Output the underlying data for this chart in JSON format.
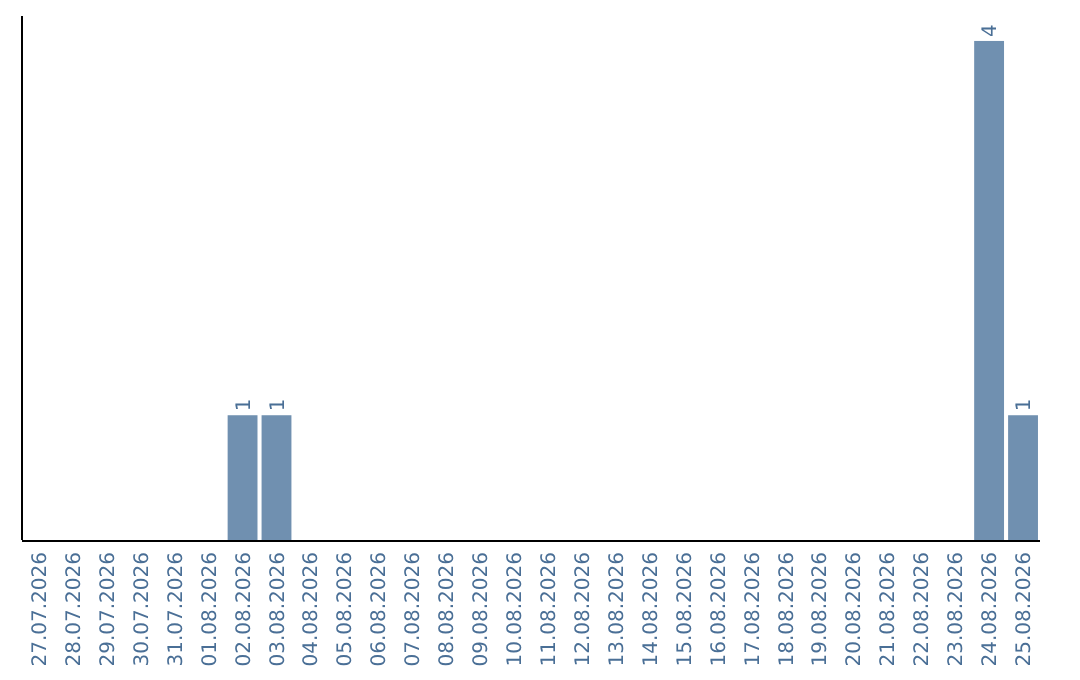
{
  "chart_data": {
    "type": "bar",
    "categories": [
      "27.07.2026",
      "28.07.2026",
      "29.07.2026",
      "30.07.2026",
      "31.07.2026",
      "01.08.2026",
      "02.08.2026",
      "03.08.2026",
      "04.08.2026",
      "05.08.2026",
      "06.08.2026",
      "07.08.2026",
      "08.08.2026",
      "09.08.2026",
      "10.08.2026",
      "11.08.2026",
      "12.08.2026",
      "13.08.2026",
      "14.08.2026",
      "15.08.2026",
      "16.08.2026",
      "17.08.2026",
      "18.08.2026",
      "19.08.2026",
      "20.08.2026",
      "21.08.2026",
      "22.08.2026",
      "23.08.2026",
      "24.08.2026",
      "25.08.2026"
    ],
    "values": [
      0,
      0,
      0,
      0,
      0,
      0,
      1,
      1,
      0,
      0,
      0,
      0,
      0,
      0,
      0,
      0,
      0,
      0,
      0,
      0,
      0,
      0,
      0,
      0,
      0,
      0,
      0,
      0,
      4,
      1
    ],
    "value_labels": [
      null,
      null,
      null,
      null,
      null,
      null,
      "1",
      "1",
      null,
      null,
      null,
      null,
      null,
      null,
      null,
      null,
      null,
      null,
      null,
      null,
      null,
      null,
      null,
      null,
      null,
      null,
      null,
      null,
      "4",
      "1"
    ],
    "color": "#7090b0"
  }
}
